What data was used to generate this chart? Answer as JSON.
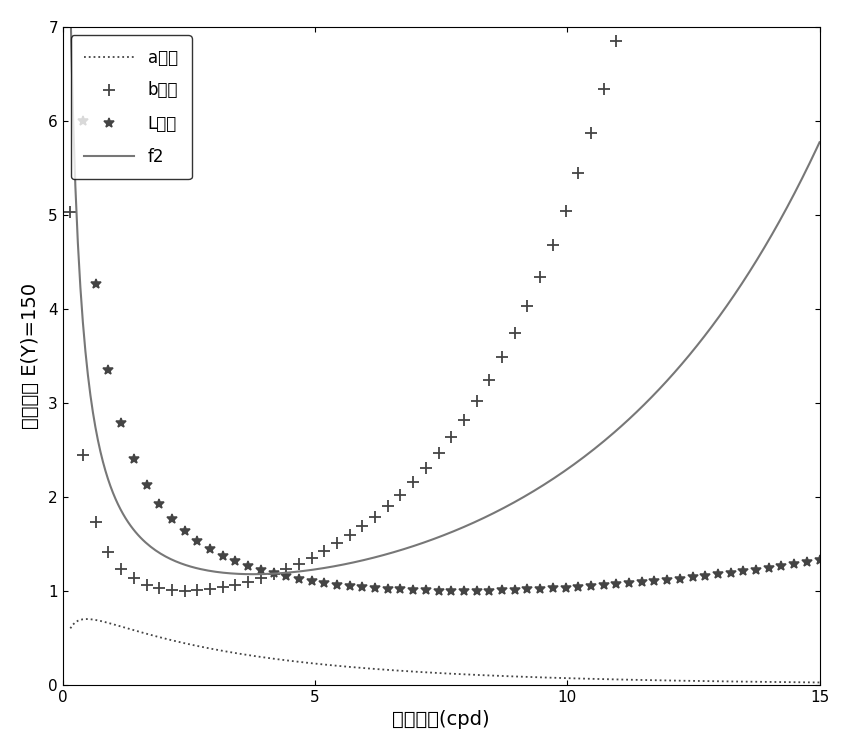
{
  "title": "",
  "xlabel": "空间频率(cpd)",
  "ylabel": "权重系数 E(Y)=150",
  "xlim": [
    0,
    15
  ],
  "ylim": [
    0,
    7
  ],
  "xticks": [
    0,
    5,
    10,
    15
  ],
  "yticks": [
    0,
    1,
    2,
    3,
    4,
    5,
    6,
    7
  ],
  "legend_labels": [
    "a分量",
    "b分量",
    "L分量",
    "f2"
  ],
  "background_color": "#ffffff",
  "figsize": [
    8.5,
    7.5
  ],
  "dpi": 100,
  "csf_L_a": 2.6,
  "csf_L_f0": 0.114,
  "csf_L_b": 1.1,
  "csf_b_a": 2.6,
  "csf_b_f0": 0.4,
  "csf_b_b": 1.0,
  "csf_a_a": 2.6,
  "csf_a_f0": 0.45,
  "csf_a_b": 0.9,
  "n_plot": 300,
  "n_sparse": 60,
  "f_start": 0.15,
  "f_end": 15.0
}
